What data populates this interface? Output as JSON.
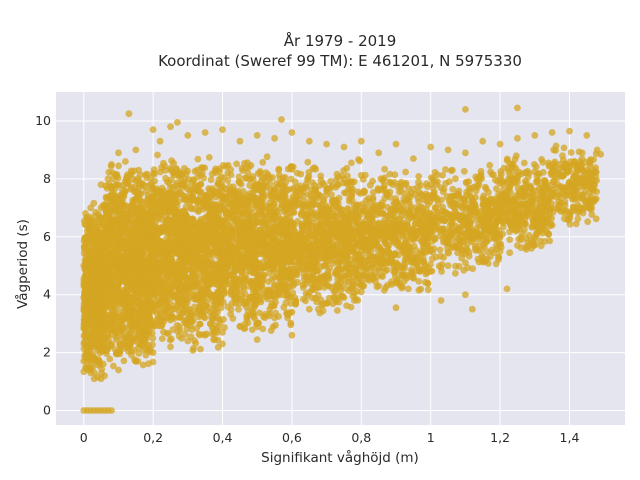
{
  "chart_data": {
    "type": "scatter",
    "title_line1": "År 1979 - 2019",
    "title_line2": "Koordinat (Sweref 99 TM): E 461201, N 5975330",
    "xlabel": "Signifikant våghöjd (m)",
    "ylabel": "Vågperiod (s)",
    "xlim": [
      -0.08,
      1.56
    ],
    "ylim": [
      -0.5,
      11
    ],
    "x_ticks": [
      0,
      0.2,
      0.4,
      0.6,
      0.8,
      1.0,
      1.2,
      1.4
    ],
    "x_tick_labels": [
      "0",
      "0,2",
      "0,4",
      "0,6",
      "0,8",
      "1",
      "1,2",
      "1,4"
    ],
    "y_ticks": [
      0,
      2,
      4,
      6,
      8,
      10
    ],
    "y_tick_labels": [
      "0",
      "2",
      "4",
      "6",
      "8",
      "10"
    ],
    "grid": true,
    "colors": {
      "plot_background": "#e5e5ef",
      "grid": "#ffffff",
      "marker": "#d4a521"
    },
    "series": [
      {
        "points": [
          [
            0.0,
            0.0
          ],
          [
            0.01,
            0.0
          ],
          [
            0.02,
            0.0
          ],
          [
            0.03,
            0.0
          ],
          [
            0.04,
            0.0
          ],
          [
            0.05,
            0.0
          ],
          [
            0.06,
            0.0
          ],
          [
            0.07,
            0.0
          ],
          [
            0.08,
            0.0
          ],
          [
            0.0,
            2.3
          ],
          [
            0.0,
            3.9
          ],
          [
            0.0,
            5.0
          ],
          [
            0.01,
            1.6
          ],
          [
            0.01,
            6.2
          ],
          [
            0.02,
            7.0
          ],
          [
            0.02,
            1.3
          ],
          [
            0.03,
            1.1
          ],
          [
            0.04,
            1.15
          ],
          [
            0.05,
            1.1
          ],
          [
            0.06,
            1.2
          ],
          [
            0.07,
            8.0
          ],
          [
            0.08,
            8.5
          ],
          [
            0.05,
            7.8
          ],
          [
            0.1,
            8.9
          ],
          [
            0.12,
            8.6
          ],
          [
            0.15,
            9.0
          ],
          [
            0.2,
            9.7
          ],
          [
            0.22,
            9.3
          ],
          [
            0.25,
            9.8
          ],
          [
            0.3,
            9.5
          ],
          [
            0.35,
            9.6
          ],
          [
            0.4,
            9.7
          ],
          [
            0.45,
            9.3
          ],
          [
            0.5,
            9.5
          ],
          [
            0.55,
            9.4
          ],
          [
            0.6,
            9.6
          ],
          [
            0.65,
            9.3
          ],
          [
            0.7,
            9.2
          ],
          [
            0.75,
            9.1
          ],
          [
            0.8,
            9.3
          ],
          [
            0.85,
            8.9
          ],
          [
            0.9,
            9.2
          ],
          [
            0.95,
            8.7
          ],
          [
            1.0,
            9.1
          ],
          [
            1.05,
            9.0
          ],
          [
            1.1,
            8.9
          ],
          [
            1.15,
            9.3
          ],
          [
            1.2,
            9.2
          ],
          [
            1.25,
            9.4
          ],
          [
            1.3,
            9.5
          ],
          [
            1.35,
            9.6
          ],
          [
            1.4,
            9.65
          ],
          [
            1.45,
            9.5
          ],
          [
            1.49,
            8.85
          ],
          [
            1.48,
            9.0
          ],
          [
            1.43,
            8.5
          ],
          [
            1.38,
            8.8
          ],
          [
            0.13,
            10.25
          ],
          [
            1.1,
            10.4
          ],
          [
            1.25,
            10.45
          ],
          [
            0.57,
            10.05
          ],
          [
            0.27,
            9.95
          ],
          [
            0.1,
            1.4
          ],
          [
            0.15,
            1.7
          ],
          [
            0.2,
            2.0
          ],
          [
            0.25,
            2.2
          ],
          [
            0.3,
            2.4
          ],
          [
            0.35,
            2.6
          ],
          [
            0.4,
            2.7
          ],
          [
            0.45,
            2.9
          ],
          [
            0.5,
            3.0
          ],
          [
            0.55,
            3.2
          ],
          [
            0.6,
            3.4
          ],
          [
            0.65,
            3.5
          ],
          [
            0.7,
            3.7
          ],
          [
            0.75,
            3.9
          ],
          [
            0.8,
            4.1
          ],
          [
            0.85,
            4.3
          ],
          [
            0.9,
            4.4
          ],
          [
            0.95,
            4.6
          ],
          [
            1.0,
            4.8
          ],
          [
            1.05,
            5.0
          ],
          [
            1.1,
            5.1
          ],
          [
            1.15,
            5.3
          ],
          [
            1.2,
            5.5
          ],
          [
            1.25,
            5.7
          ],
          [
            1.3,
            6.0
          ],
          [
            1.35,
            6.4
          ],
          [
            1.4,
            6.8
          ],
          [
            1.45,
            7.2
          ],
          [
            1.47,
            7.6
          ],
          [
            0.78,
            3.8
          ],
          [
            0.9,
            3.55
          ],
          [
            1.03,
            3.8
          ],
          [
            1.1,
            4.0
          ],
          [
            1.22,
            4.2
          ],
          [
            1.12,
            3.5
          ],
          [
            0.6,
            2.6
          ],
          [
            0.5,
            2.45
          ],
          [
            0.4,
            2.3
          ],
          [
            1.3,
            6.5
          ],
          [
            1.34,
            6.1
          ],
          [
            1.28,
            5.8
          ]
        ]
      }
    ],
    "density_bands": [
      {
        "x0": 0.0,
        "x1": 0.06,
        "ylo": 1.1,
        "yhi": 7.3,
        "n": 700
      },
      {
        "x0": 0.06,
        "x1": 0.2,
        "ylo": 1.3,
        "yhi": 8.6,
        "n": 1300
      },
      {
        "x0": 0.2,
        "x1": 0.4,
        "ylo": 2.0,
        "yhi": 8.9,
        "n": 1300
      },
      {
        "x0": 0.4,
        "x1": 0.6,
        "ylo": 2.6,
        "yhi": 8.9,
        "n": 1100
      },
      {
        "x0": 0.6,
        "x1": 0.8,
        "ylo": 3.2,
        "yhi": 8.7,
        "n": 800
      },
      {
        "x0": 0.8,
        "x1": 1.0,
        "ylo": 3.9,
        "yhi": 8.4,
        "n": 600
      },
      {
        "x0": 1.0,
        "x1": 1.2,
        "ylo": 4.6,
        "yhi": 8.5,
        "n": 450
      },
      {
        "x0": 1.2,
        "x1": 1.35,
        "ylo": 5.4,
        "yhi": 8.9,
        "n": 350
      },
      {
        "x0": 1.35,
        "x1": 1.48,
        "ylo": 6.3,
        "yhi": 9.3,
        "n": 220
      }
    ]
  }
}
